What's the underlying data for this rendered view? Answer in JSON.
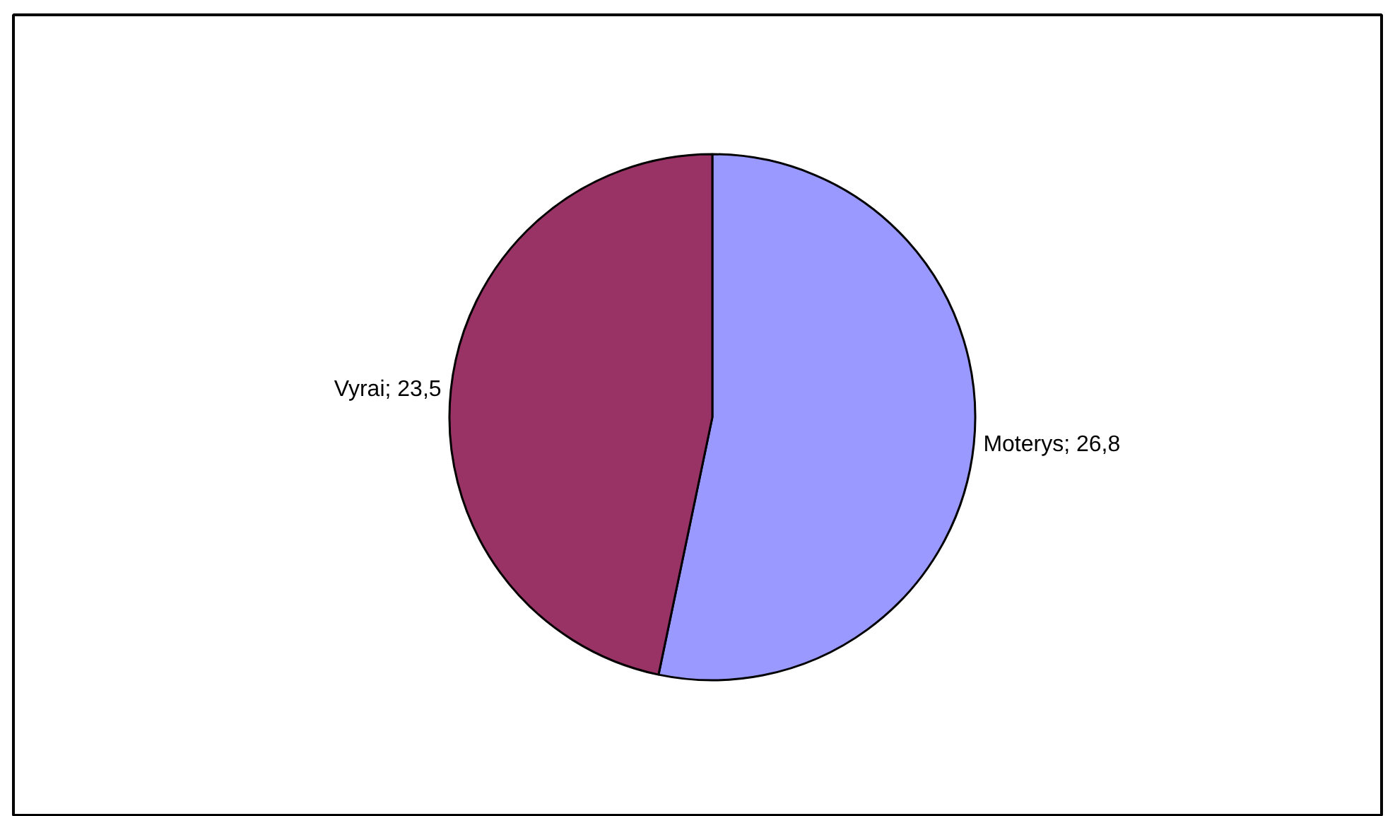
{
  "chart_data": {
    "type": "pie",
    "categories": [
      "Moterys",
      "Vyrai"
    ],
    "values": [
      26.8,
      23.5
    ],
    "colors": [
      "#9999ff",
      "#993366"
    ],
    "value_labels": [
      "26,8",
      "23,5"
    ],
    "legend": false
  }
}
